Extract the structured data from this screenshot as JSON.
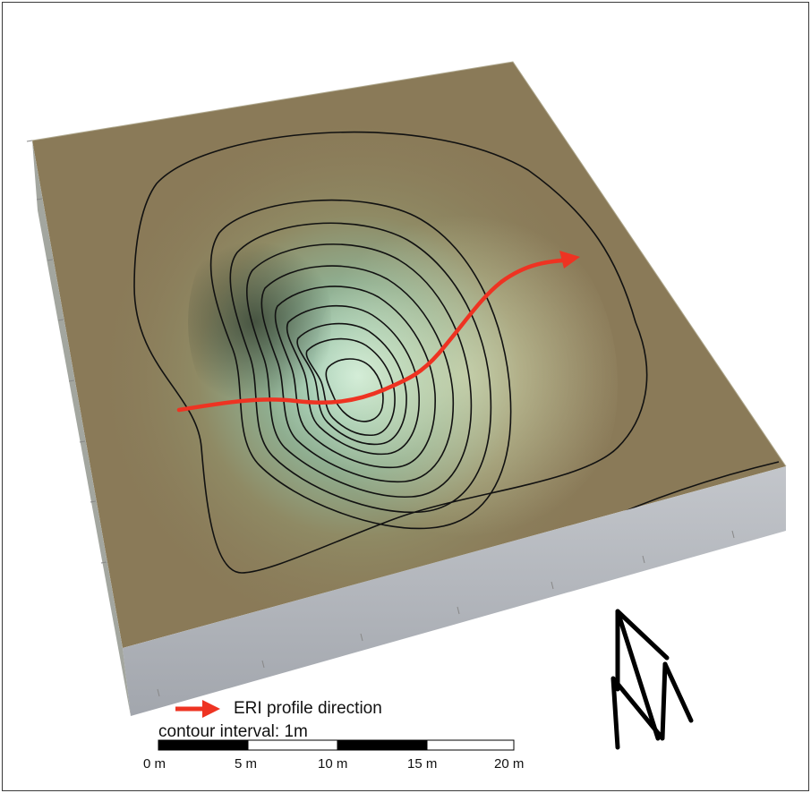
{
  "legend": {
    "arrow_label": "ERI profile direction",
    "contour_interval": "contour interval: 1m",
    "arrow_color": "#ee3322"
  },
  "scale_bar": {
    "ticks": [
      "0 m",
      "5 m",
      "10 m",
      "15 m",
      "20 m"
    ],
    "segment_colors": [
      "#000000",
      "#ffffff",
      "#000000",
      "#ffffff"
    ]
  },
  "north_arrow": {
    "icon": "north-arrow-icon"
  },
  "terrain": {
    "surface_color": "#8a7a58",
    "depression_color": "#b9dcc6",
    "contour_count": 11
  },
  "profile": {
    "color": "#ee3322"
  }
}
